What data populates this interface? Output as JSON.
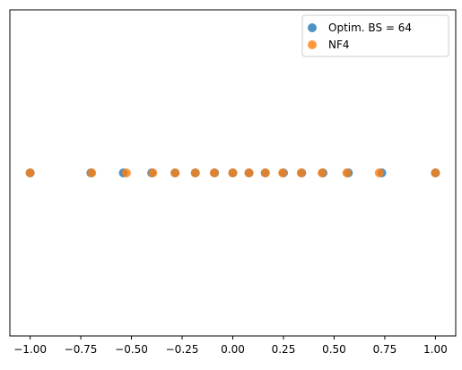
{
  "chart_data": {
    "type": "scatter",
    "title": "",
    "xlabel": "",
    "ylabel": "",
    "xlim": [
      -1.1,
      1.1
    ],
    "ylim": [
      -1,
      1
    ],
    "yticks_visible": false,
    "grid": false,
    "legend_position": "top-right",
    "xticks": [
      -1.0,
      -0.75,
      -0.5,
      -0.25,
      0.0,
      0.25,
      0.5,
      0.75,
      1.0
    ],
    "xtick_labels": [
      "−1.00",
      "−0.75",
      "−0.50",
      "−0.25",
      "0.00",
      "0.25",
      "0.50",
      "0.75",
      "1.00"
    ],
    "series": [
      {
        "name": "Optim. BS = 64",
        "color": "#1f77b4",
        "x": [
          -1.0,
          -0.7,
          -0.54,
          -0.4,
          -0.285,
          -0.185,
          -0.09,
          0.0,
          0.08,
          0.16,
          0.25,
          0.34,
          0.445,
          0.57,
          0.735,
          1.0
        ],
        "y": [
          0,
          0,
          0,
          0,
          0,
          0,
          0,
          0,
          0,
          0,
          0,
          0,
          0,
          0,
          0,
          0
        ]
      },
      {
        "name": "NF4",
        "color": "#ff7f0e",
        "x": [
          -1.0,
          -0.6962,
          -0.5251,
          -0.3949,
          -0.2844,
          -0.1848,
          -0.0911,
          0.0,
          0.0796,
          0.1609,
          0.2461,
          0.3379,
          0.4407,
          0.5626,
          0.723,
          1.0
        ],
        "y": [
          0,
          0,
          0,
          0,
          0,
          0,
          0,
          0,
          0,
          0,
          0,
          0,
          0,
          0,
          0,
          0
        ]
      }
    ]
  }
}
